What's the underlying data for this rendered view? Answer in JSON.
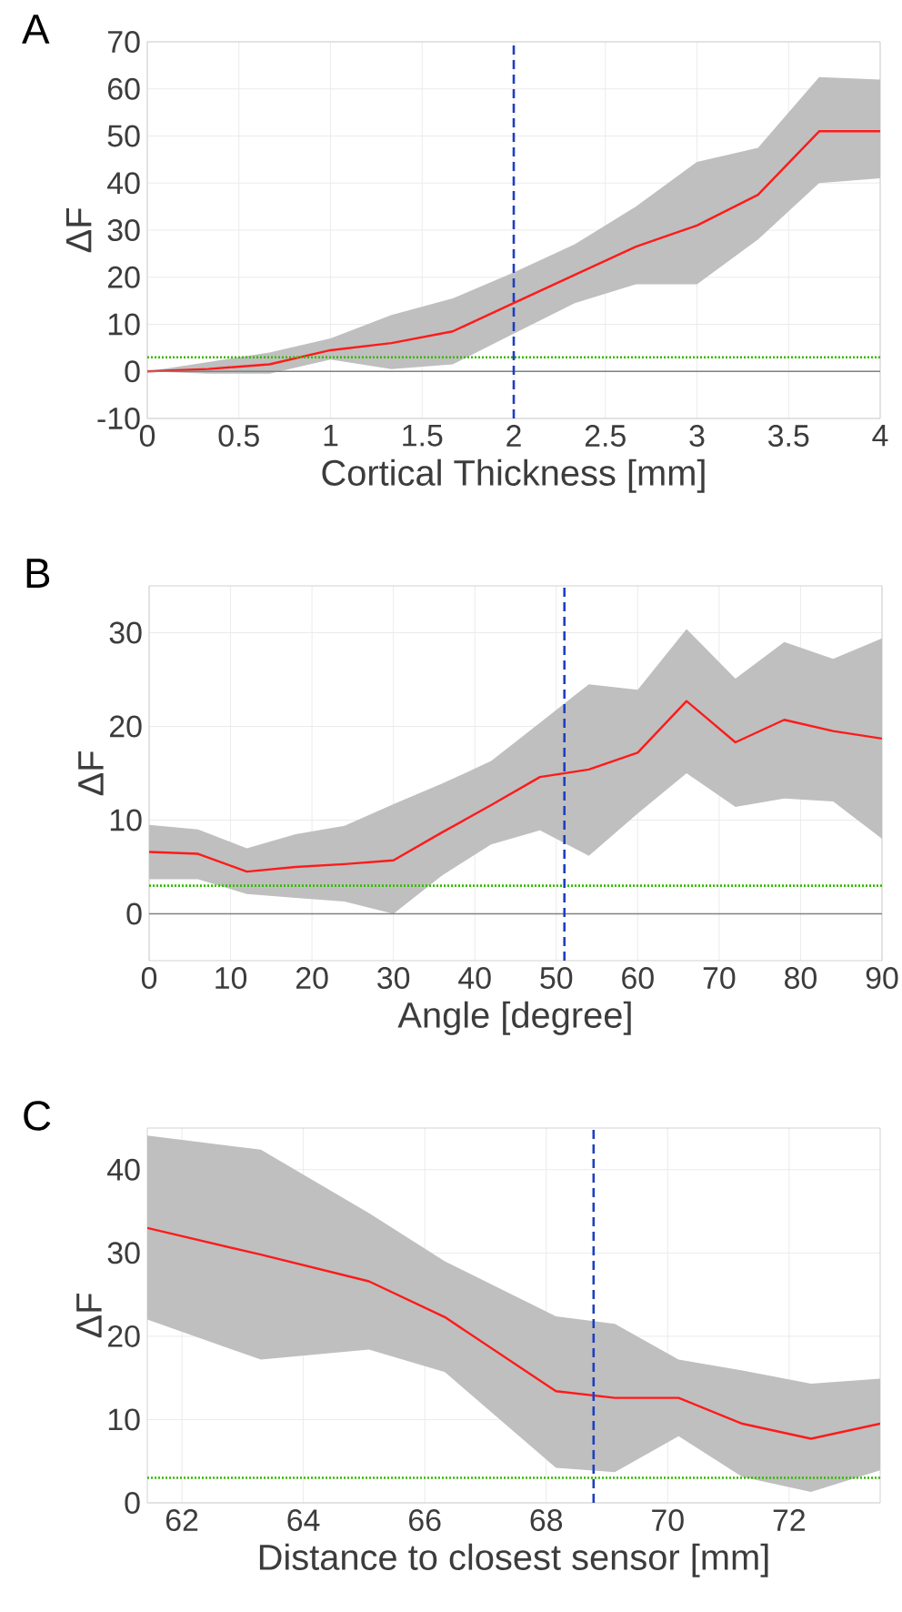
{
  "chart_data": [
    {
      "type": "line",
      "title": "A",
      "xlabel": "Cortical Thickness [mm]",
      "ylabel": "ΔF",
      "x": [
        0,
        0.333,
        0.667,
        1,
        1.333,
        1.667,
        2,
        2.333,
        2.667,
        3,
        3.333,
        3.667,
        4
      ],
      "series": [
        {
          "color": "#ff1a1a",
          "values": [
            0,
            0.5,
            1.5,
            4.5,
            6,
            8.5,
            14.5,
            20.5,
            26.5,
            31,
            37.5,
            51,
            51
          ],
          "lower": [
            0,
            -0.5,
            -0.5,
            2.5,
            0.5,
            1.5,
            8,
            14.5,
            18.5,
            18.5,
            28,
            40,
            41
          ],
          "upper": [
            0,
            2,
            4,
            7,
            12,
            15.5,
            21,
            27,
            35,
            44.5,
            47.5,
            62.5,
            62
          ]
        }
      ],
      "xlim": [
        0,
        4
      ],
      "ylim": [
        -10,
        70
      ],
      "xticks": [
        0,
        0.5,
        1,
        1.5,
        2,
        2.5,
        3,
        3.5,
        4
      ],
      "yticks": [
        -10,
        0,
        10,
        20,
        30,
        40,
        50,
        60,
        70
      ],
      "ref_lines": [
        {
          "axis": "y",
          "value": 0,
          "color": "#808080",
          "line_style": "solid"
        },
        {
          "axis": "y",
          "value": 3,
          "color": "#33bb00",
          "line_style": "dotted"
        },
        {
          "axis": "x",
          "value": 2,
          "color": "#1f3fbf",
          "line_style": "dashed"
        }
      ],
      "grid": true
    },
    {
      "type": "line",
      "title": "B",
      "xlabel": "Angle [degree]",
      "ylabel": "ΔF",
      "x": [
        0,
        6,
        12,
        18,
        24,
        30,
        36,
        42,
        48,
        54,
        60,
        66,
        72,
        78,
        84,
        90
      ],
      "series": [
        {
          "color": "#ff1a1a",
          "values": [
            6.6,
            6.4,
            4.5,
            5,
            5.3,
            5.7,
            8.7,
            11.6,
            14.6,
            15.4,
            17.2,
            22.7,
            18.3,
            20.7,
            19.5,
            18.7
          ],
          "lower": [
            3.7,
            3.7,
            2.1,
            1.7,
            1.3,
            0,
            4.1,
            7.4,
            8.9,
            6.2,
            10.7,
            15,
            11.4,
            12.3,
            12,
            8
          ],
          "upper": [
            9.5,
            9,
            7,
            8.5,
            9.4,
            11.7,
            13.9,
            16.3,
            20.4,
            24.5,
            23.9,
            30.4,
            25.1,
            29,
            27.2,
            29.4
          ]
        }
      ],
      "xlim": [
        0,
        90
      ],
      "ylim": [
        -5,
        35
      ],
      "xticks": [
        0,
        10,
        20,
        30,
        40,
        50,
        60,
        70,
        80,
        90
      ],
      "yticks": [
        0,
        10,
        20,
        30
      ],
      "ref_lines": [
        {
          "axis": "y",
          "value": 0,
          "color": "#808080",
          "line_style": "solid"
        },
        {
          "axis": "y",
          "value": 3,
          "color": "#33bb00",
          "line_style": "dotted"
        },
        {
          "axis": "x",
          "value": 51,
          "color": "#1f3fbf",
          "line_style": "dashed"
        }
      ],
      "grid": true
    },
    {
      "type": "line",
      "title": "C",
      "xlabel": "Distance to closest sensor [mm]",
      "ylabel": "ΔF",
      "x": [
        61.43,
        63.3,
        65.08,
        66.33,
        68.16,
        69.13,
        70.18,
        71.23,
        72.36,
        73.5
      ],
      "series": [
        {
          "color": "#ff1a1a",
          "values": [
            33,
            29.8,
            26.6,
            22.3,
            13.4,
            12.6,
            12.6,
            9.5,
            7.7,
            9.5
          ],
          "lower": [
            22,
            17.2,
            18.4,
            15.7,
            4.2,
            3.7,
            8,
            3.1,
            1.3,
            3.9
          ],
          "upper": [
            44.1,
            42.4,
            34.8,
            29,
            22.4,
            21.5,
            17.2,
            15.9,
            14.3,
            14.9
          ]
        }
      ],
      "xlim": [
        61.43,
        73.5
      ],
      "ylim": [
        0,
        45
      ],
      "xticks": [
        62,
        64,
        66,
        68,
        70,
        72
      ],
      "yticks": [
        0,
        10,
        20,
        30,
        40
      ],
      "ref_lines": [
        {
          "axis": "y",
          "value": 3,
          "color": "#33bb00",
          "line_style": "dotted"
        },
        {
          "axis": "x",
          "value": 68.78,
          "color": "#1f3fbf",
          "line_style": "dashed"
        }
      ],
      "grid": true
    }
  ]
}
